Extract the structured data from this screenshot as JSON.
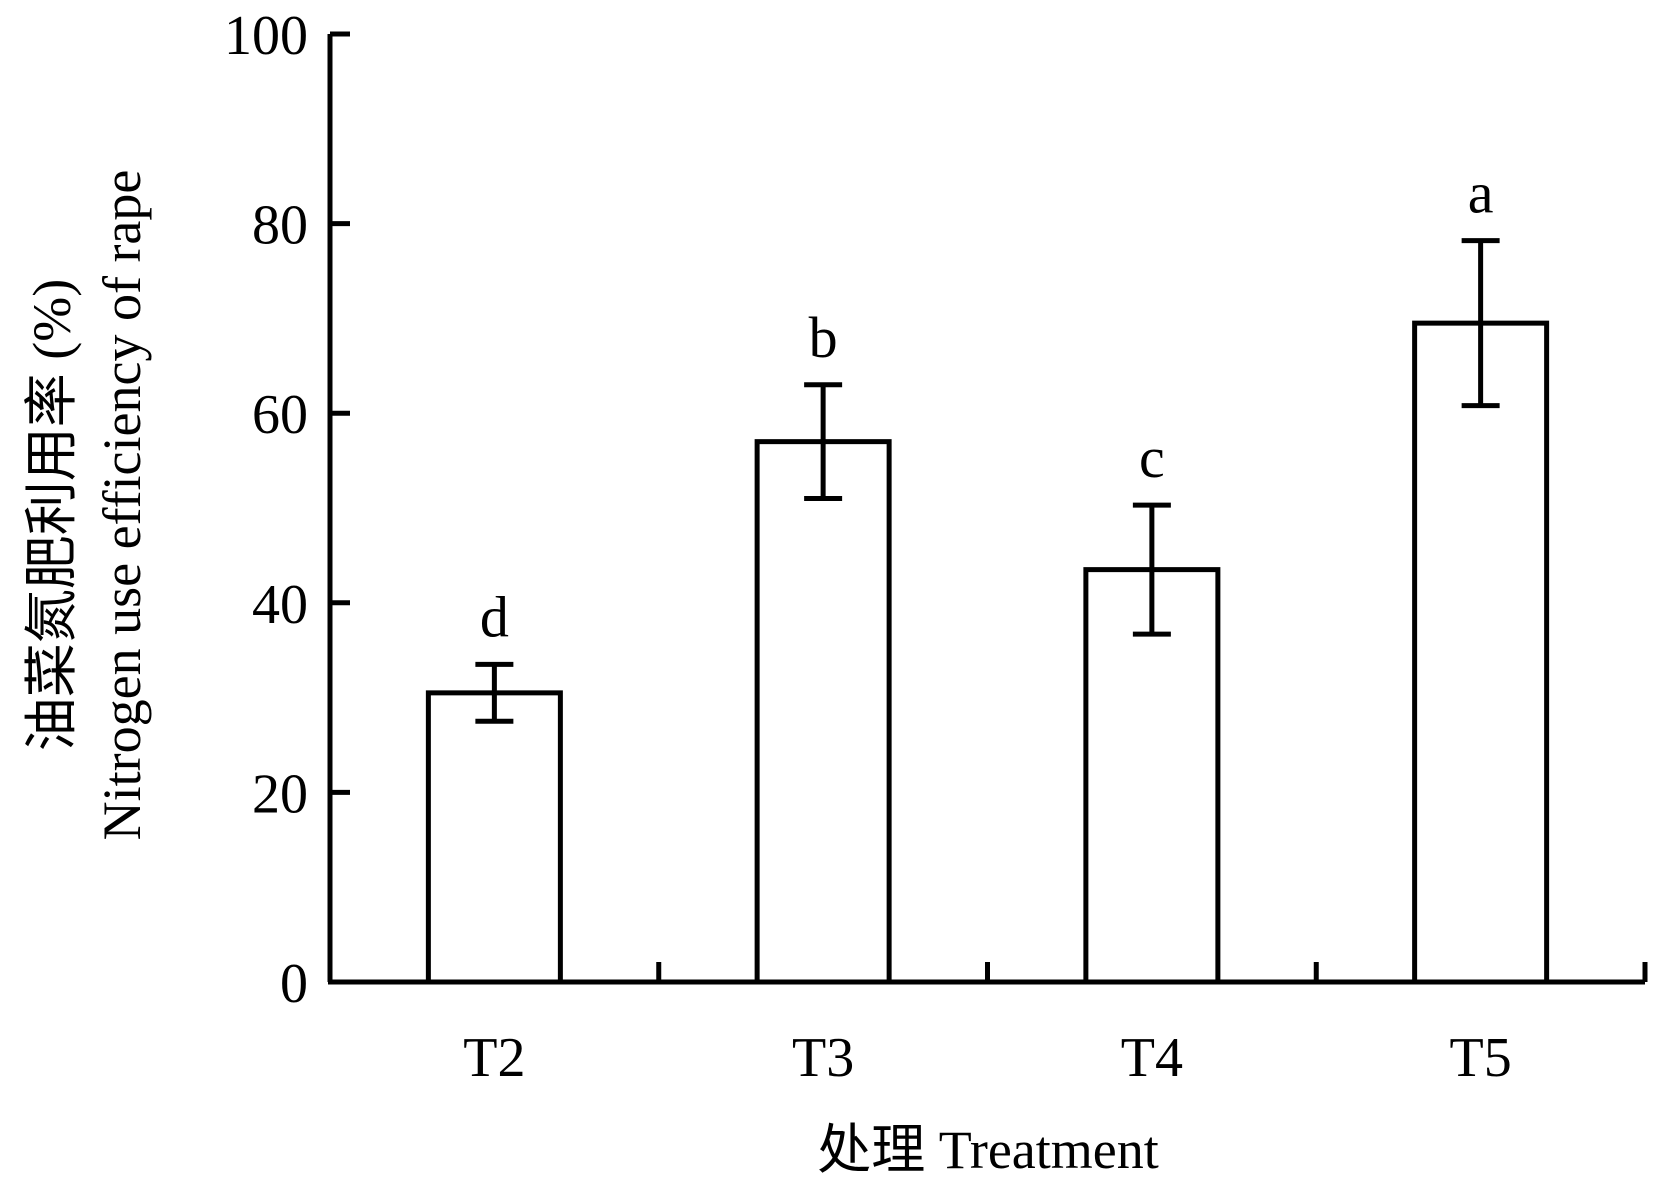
{
  "chart_data": {
    "type": "bar",
    "categories": [
      "T2",
      "T3",
      "T4",
      "T5"
    ],
    "values": [
      30.5,
      57,
      43.5,
      69.5
    ],
    "errors": [
      3,
      6,
      6.8,
      8.7
    ],
    "significance_letters": [
      "d",
      "b",
      "c",
      "a"
    ],
    "ylim": [
      0,
      100
    ],
    "yticks": [
      0,
      20,
      40,
      60,
      80,
      100
    ],
    "xlabel": "处理 Treatment",
    "ylabel_cn": "油菜氮肥利用率 (%)",
    "ylabel_en": "Nitrogen use efficiency of rape",
    "grid": false,
    "legend": "none",
    "colors": {
      "bar_fill": "#ffffff",
      "bar_stroke": "#000000",
      "axis": "#000000"
    }
  }
}
